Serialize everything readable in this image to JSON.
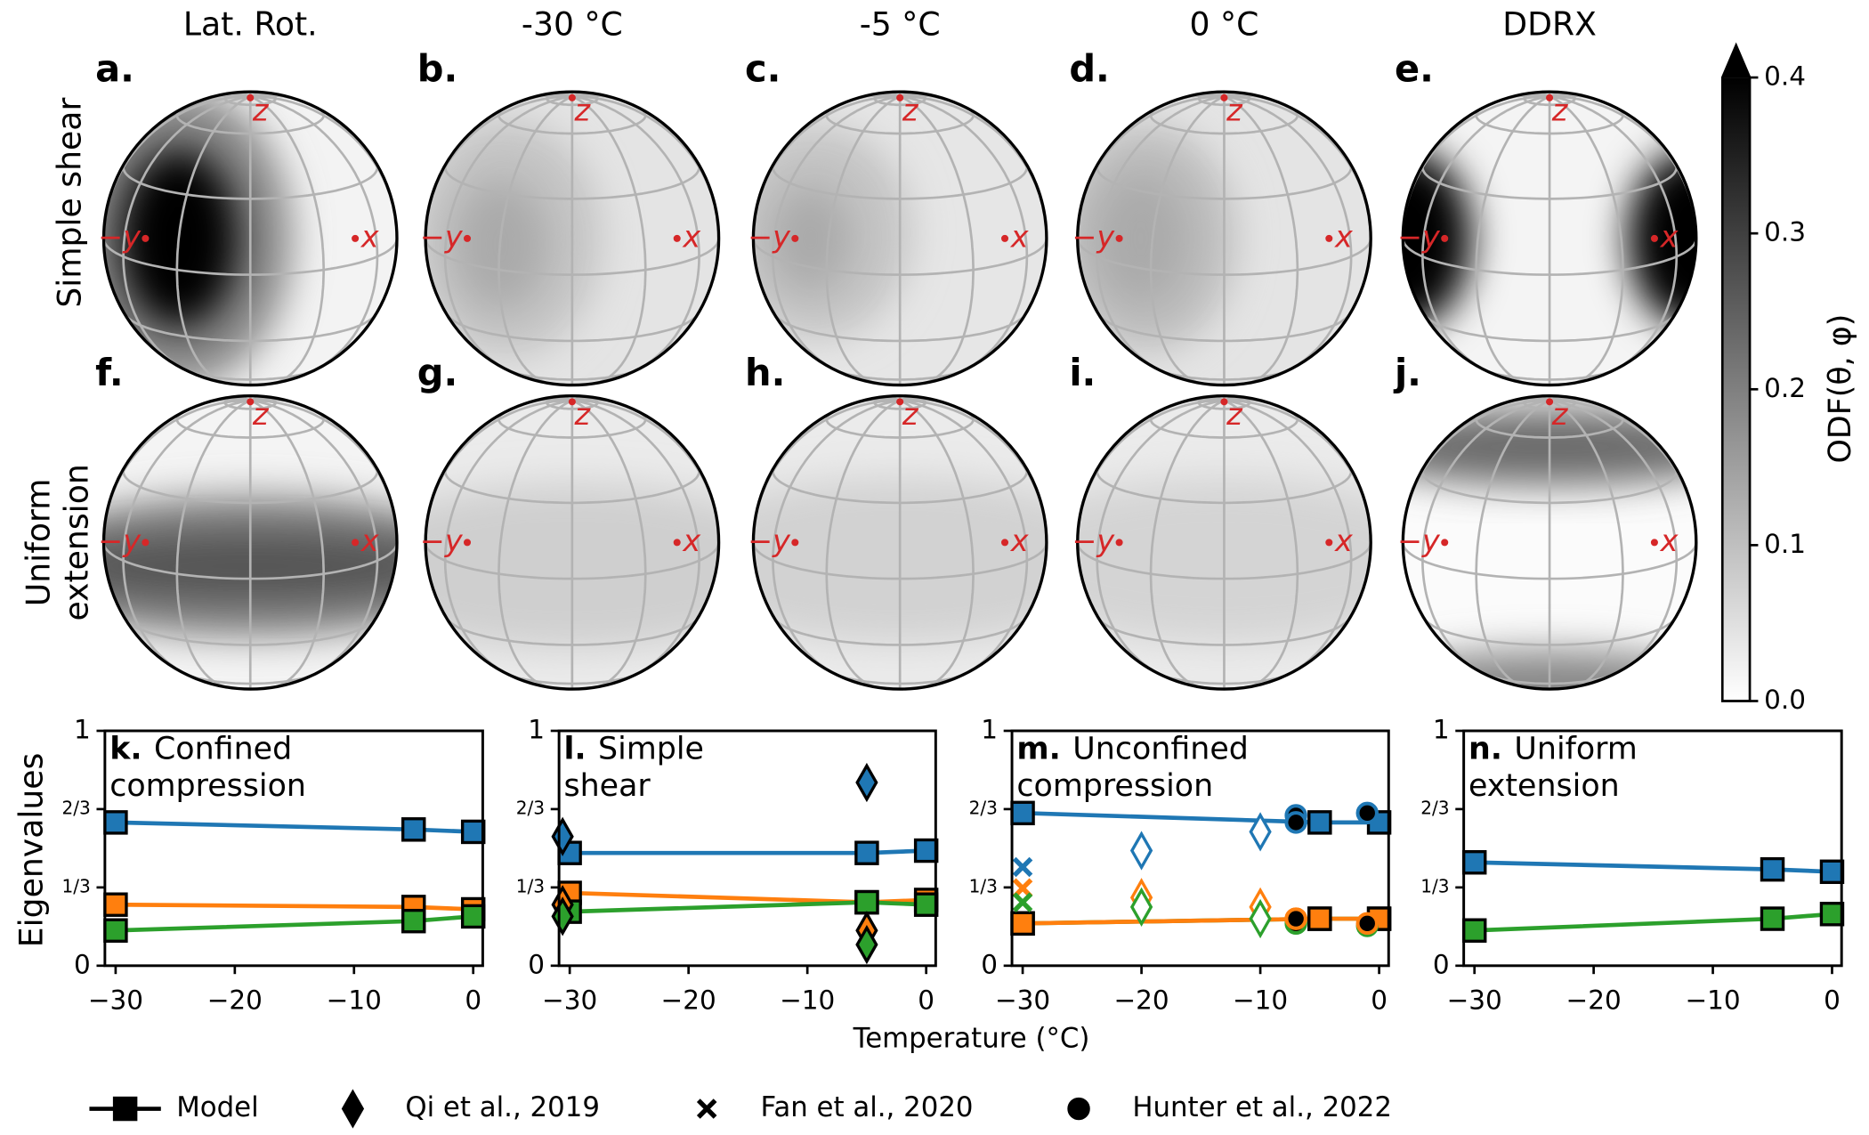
{
  "column_titles": [
    "Lat. Rot.",
    "-30 °C",
    "-5 °C",
    "0 °C",
    "DDRX"
  ],
  "row_labels": [
    "Simple shear",
    [
      "Uniform",
      "extension"
    ]
  ],
  "spheres": {
    "panel_labels": [
      "a.",
      "b.",
      "c.",
      "d.",
      "e.",
      "f.",
      "g.",
      "h.",
      "i.",
      "j."
    ],
    "axis_labels": [
      "−y",
      "x",
      "z"
    ]
  },
  "colorbar": {
    "label": "ODF(θ, φ)",
    "lim": [
      0,
      0.4
    ],
    "ticks": [
      {
        "value": 0,
        "label": "0.0"
      },
      {
        "value": 0.1,
        "label": "0.1"
      },
      {
        "value": 0.2,
        "label": "0.2"
      },
      {
        "value": 0.3,
        "label": "0.3"
      },
      {
        "value": 0.4,
        "label": "0.4"
      }
    ]
  },
  "ylabel": "Eigenvalues",
  "xlabel": "Temperature (°C)",
  "legend": [
    {
      "name": "Model",
      "marker": "square",
      "line": true
    },
    {
      "name": "Qi et al., 2019",
      "marker": "diamond"
    },
    {
      "name": "Fan et al., 2020",
      "marker": "x"
    },
    {
      "name": "Hunter et al., 2022",
      "marker": "circle"
    }
  ],
  "chart_data": [
    {
      "type": "line",
      "label": "k.",
      "title": [
        "Confined",
        "compression"
      ],
      "xlim": [
        -30.9,
        0.8
      ],
      "ylim": [
        0,
        1
      ],
      "xticks": [
        {
          "value": -30,
          "label": "−30"
        },
        {
          "value": -20,
          "label": "−20"
        },
        {
          "value": -10,
          "label": "−10"
        },
        0
      ],
      "yticks": [
        0,
        {
          "value": 0.3333,
          "label": "1/3"
        },
        {
          "value": 0.6667,
          "label": "2/3"
        },
        1
      ],
      "series": [
        {
          "marker": "square",
          "line": true,
          "filled": true,
          "color": "#1f77b4",
          "x": [
            -30,
            -5,
            0
          ],
          "values": [
            0.61,
            0.58,
            0.57
          ]
        },
        {
          "marker": "square",
          "line": true,
          "filled": true,
          "color": "#ff7f0e",
          "x": [
            -30,
            -5,
            0
          ],
          "values": [
            0.26,
            0.25,
            0.24
          ]
        },
        {
          "marker": "square",
          "line": true,
          "filled": true,
          "color": "#2ca02c",
          "x": [
            -30,
            -5,
            0
          ],
          "values": [
            0.15,
            0.19,
            0.21
          ]
        }
      ]
    },
    {
      "type": "line",
      "label": "l.",
      "title": [
        "Simple",
        "shear"
      ],
      "xlim": [
        -30.9,
        0.8
      ],
      "ylim": [
        0,
        1
      ],
      "xticks": [
        {
          "value": -30,
          "label": "−30"
        },
        {
          "value": -20,
          "label": "−20"
        },
        {
          "value": -10,
          "label": "−10"
        },
        0
      ],
      "yticks": [
        0,
        {
          "value": 0.3333,
          "label": "1/3"
        },
        {
          "value": 0.6667,
          "label": "2/3"
        },
        1
      ],
      "series": [
        {
          "marker": "square",
          "line": true,
          "filled": true,
          "color": "#1f77b4",
          "x": [
            -30,
            -5,
            0
          ],
          "values": [
            0.48,
            0.48,
            0.49
          ]
        },
        {
          "marker": "square",
          "line": true,
          "filled": true,
          "color": "#ff7f0e",
          "x": [
            -30,
            -5,
            0
          ],
          "values": [
            0.31,
            0.27,
            0.28
          ]
        },
        {
          "marker": "square",
          "line": true,
          "filled": true,
          "color": "#2ca02c",
          "x": [
            -30,
            -5,
            0
          ],
          "values": [
            0.23,
            0.27,
            0.26
          ]
        },
        {
          "marker": "diamond",
          "filled": true,
          "color": "#1f77b4",
          "x": [
            -30.6,
            -5
          ],
          "values": [
            0.55,
            0.78
          ]
        },
        {
          "marker": "diamond",
          "filled": true,
          "color": "#ff7f0e",
          "x": [
            -30.6,
            -5
          ],
          "values": [
            0.26,
            0.15
          ]
        },
        {
          "marker": "diamond",
          "filled": true,
          "color": "#2ca02c",
          "x": [
            -30.6,
            -5
          ],
          "values": [
            0.21,
            0.09
          ]
        }
      ]
    },
    {
      "type": "line",
      "label": "m.",
      "title": [
        "Unconfined",
        "compression"
      ],
      "xlim": [
        -30.9,
        0.8
      ],
      "ylim": [
        0,
        1
      ],
      "xticks": [
        {
          "value": -30,
          "label": "−30"
        },
        {
          "value": -20,
          "label": "−20"
        },
        {
          "value": -10,
          "label": "−10"
        },
        0
      ],
      "yticks": [
        0,
        {
          "value": 0.3333,
          "label": "1/3"
        },
        {
          "value": 0.6667,
          "label": "2/3"
        },
        1
      ],
      "series": [
        {
          "marker": "square",
          "line": true,
          "filled": true,
          "color": "#2ca02c",
          "x": [
            -30,
            -5,
            0
          ],
          "values": [
            0.18,
            0.2,
            0.2
          ]
        },
        {
          "marker": "square",
          "line": true,
          "filled": true,
          "color": "#ff7f0e",
          "x": [
            -30,
            -5,
            0
          ],
          "values": [
            0.18,
            0.2,
            0.2
          ]
        },
        {
          "marker": "square",
          "line": true,
          "filled": true,
          "color": "#1f77b4",
          "x": [
            -30,
            -5,
            0
          ],
          "values": [
            0.65,
            0.61,
            0.61
          ]
        },
        {
          "marker": "diamond",
          "filled": false,
          "color": "#1f77b4",
          "x": [
            -20,
            -10
          ],
          "values": [
            0.49,
            0.57
          ]
        },
        {
          "marker": "diamond",
          "filled": false,
          "color": "#ff7f0e",
          "x": [
            -20,
            -10
          ],
          "values": [
            0.29,
            0.25
          ]
        },
        {
          "marker": "diamond",
          "filled": false,
          "color": "#2ca02c",
          "x": [
            -20,
            -10
          ],
          "values": [
            0.25,
            0.2
          ]
        },
        {
          "marker": "x",
          "color": "#1f77b4",
          "x": [
            -30
          ],
          "values": [
            0.42
          ]
        },
        {
          "marker": "x",
          "color": "#ff7f0e",
          "x": [
            -30
          ],
          "values": [
            0.33
          ]
        },
        {
          "marker": "x",
          "color": "#2ca02c",
          "x": [
            -30
          ],
          "values": [
            0.27
          ]
        },
        {
          "marker": "circle",
          "filled": true,
          "color": "#2ca02c",
          "x": [
            -7,
            -7,
            -1
          ],
          "values": [
            0.19,
            0.18,
            0.17
          ]
        },
        {
          "marker": "circle",
          "filled": true,
          "color": "#ff7f0e",
          "x": [
            -7,
            -7,
            -1
          ],
          "values": [
            0.2,
            0.2,
            0.18
          ]
        },
        {
          "marker": "circle",
          "filled": true,
          "color": "#1f77b4",
          "x": [
            -7,
            -7,
            -1
          ],
          "values": [
            0.64,
            0.61,
            0.65
          ]
        }
      ]
    },
    {
      "type": "line",
      "label": "n.",
      "title": [
        "Uniform",
        "extension"
      ],
      "xlim": [
        -30.9,
        0.8
      ],
      "ylim": [
        0,
        1
      ],
      "xticks": [
        {
          "value": -30,
          "label": "−30"
        },
        {
          "value": -20,
          "label": "−20"
        },
        {
          "value": -10,
          "label": "−10"
        },
        0
      ],
      "yticks": [
        0,
        {
          "value": 0.3333,
          "label": "1/3"
        },
        {
          "value": 0.6667,
          "label": "2/3"
        },
        1
      ],
      "series": [
        {
          "marker": "square",
          "line": true,
          "filled": true,
          "color": "#1f77b4",
          "x": [
            -30,
            -5,
            0
          ],
          "values": [
            0.44,
            0.41,
            0.4
          ]
        },
        {
          "marker": "square",
          "line": true,
          "filled": true,
          "color": "#2ca02c",
          "x": [
            -30,
            -5,
            0
          ],
          "values": [
            0.15,
            0.2,
            0.22
          ]
        }
      ]
    }
  ]
}
